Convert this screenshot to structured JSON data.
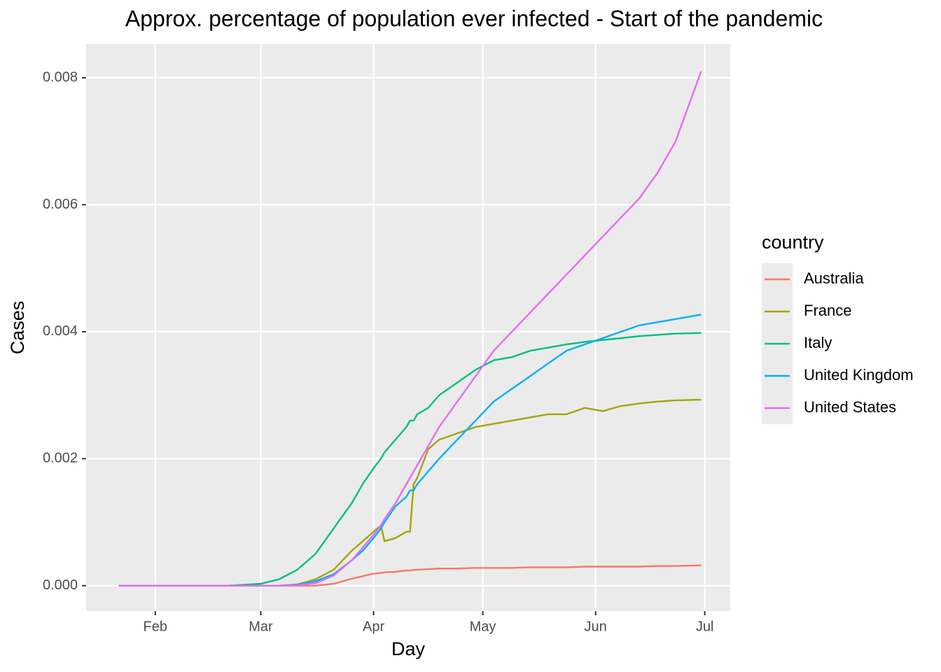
{
  "chart_data": {
    "type": "line",
    "title": "Approx. percentage of population ever infected - Start of the pandemic",
    "x_label": "Day",
    "y_label": "Cases",
    "legend_title": "country",
    "x": [
      22,
      32,
      42,
      52,
      61,
      66,
      71,
      76,
      81,
      86,
      89,
      92,
      94,
      95,
      98,
      101,
      102,
      103,
      104,
      107,
      110,
      115,
      120,
      125,
      130,
      135,
      140,
      145,
      150,
      155,
      160,
      165,
      170,
      175,
      182
    ],
    "series": [
      {
        "name": "Australia",
        "color": "#F8766D",
        "values": [
          0,
          0,
          0,
          0,
          0,
          0,
          0,
          0,
          3e-05,
          0.00011,
          0.00015,
          0.00019,
          0.0002,
          0.00021,
          0.00022,
          0.00024,
          0.00024,
          0.00025,
          0.00025,
          0.00026,
          0.00027,
          0.00027,
          0.00028,
          0.00028,
          0.00028,
          0.00029,
          0.00029,
          0.00029,
          0.0003,
          0.0003,
          0.0003,
          0.0003,
          0.00031,
          0.00031,
          0.00032
        ]
      },
      {
        "name": "France",
        "color": "#A3A500",
        "values": [
          0,
          0,
          0,
          0,
          0,
          0,
          2e-05,
          0.0001,
          0.00025,
          0.00055,
          0.0007,
          0.00085,
          0.00095,
          0.0007,
          0.00075,
          0.00085,
          0.00085,
          0.0016,
          0.0017,
          0.00215,
          0.0023,
          0.0024,
          0.0025,
          0.00255,
          0.0026,
          0.00265,
          0.0027,
          0.0027,
          0.0028,
          0.00275,
          0.00283,
          0.00287,
          0.0029,
          0.00292,
          0.00293
        ]
      },
      {
        "name": "Italy",
        "color": "#00BF7D",
        "values": [
          0,
          0,
          0,
          0,
          3e-05,
          0.0001,
          0.00025,
          0.0005,
          0.0009,
          0.0013,
          0.0016,
          0.00185,
          0.002,
          0.0021,
          0.0023,
          0.0025,
          0.0026,
          0.0026,
          0.0027,
          0.0028,
          0.003,
          0.0032,
          0.0034,
          0.00355,
          0.0036,
          0.0037,
          0.00375,
          0.0038,
          0.00384,
          0.00387,
          0.0039,
          0.00393,
          0.00395,
          0.00397,
          0.00398
        ]
      },
      {
        "name": "United Kingdom",
        "color": "#00B0F6",
        "values": [
          0,
          0,
          0,
          0,
          0,
          0,
          2e-05,
          7e-05,
          0.00018,
          0.0004,
          0.00055,
          0.00075,
          0.0009,
          0.001,
          0.00125,
          0.0014,
          0.0015,
          0.0015,
          0.0016,
          0.0018,
          0.002,
          0.0023,
          0.0026,
          0.0029,
          0.0031,
          0.0033,
          0.0035,
          0.0037,
          0.0038,
          0.0039,
          0.004,
          0.0041,
          0.00415,
          0.0042,
          0.00427
        ]
      },
      {
        "name": "United States",
        "color": "#E76BF3",
        "values": [
          0,
          0,
          0,
          0,
          0,
          0,
          1e-05,
          4e-05,
          0.00016,
          0.0004,
          0.0006,
          0.0008,
          0.00095,
          0.00105,
          0.0013,
          0.0016,
          0.0017,
          0.0018,
          0.0019,
          0.0022,
          0.0025,
          0.0029,
          0.0033,
          0.0037,
          0.004,
          0.0043,
          0.0046,
          0.0049,
          0.0052,
          0.0055,
          0.0058,
          0.0061,
          0.0065,
          0.007,
          0.0081
        ]
      }
    ],
    "xlim": [
      13,
      190
    ],
    "xticks": [
      {
        "value": 32,
        "label": "Feb"
      },
      {
        "value": 61,
        "label": "Mar"
      },
      {
        "value": 92,
        "label": "Apr"
      },
      {
        "value": 122,
        "label": "May"
      },
      {
        "value": 153,
        "label": "Jun"
      },
      {
        "value": 183,
        "label": "Jul"
      }
    ],
    "ylim": [
      -0.0004,
      0.00853
    ],
    "yticks": [
      {
        "value": 0,
        "label": "0.000"
      },
      {
        "value": 0.002,
        "label": "0.002"
      },
      {
        "value": 0.004,
        "label": "0.004"
      },
      {
        "value": 0.006,
        "label": "0.006"
      },
      {
        "value": 0.008,
        "label": "0.008"
      }
    ],
    "grid": true,
    "legend_position": "right"
  }
}
